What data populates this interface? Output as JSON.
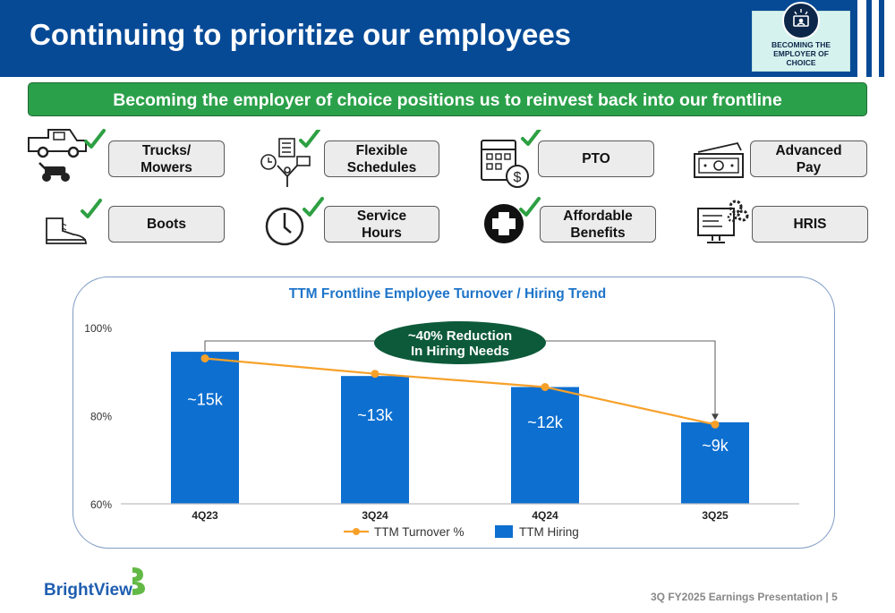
{
  "header": {
    "title": "Continuing to prioritize our employees"
  },
  "badge": {
    "text": "BECOMING THE\nEMPLOYER OF\nCHOICE"
  },
  "banner": {
    "text": "Becoming the employer of choice positions us to reinvest back into our frontline"
  },
  "benefits": [
    {
      "label": "Trucks/\nMowers",
      "icon": "truck-mower-icon",
      "checked": true
    },
    {
      "label": "Flexible\nSchedules",
      "icon": "flexible-schedule-icon",
      "checked": true
    },
    {
      "label": "PTO",
      "icon": "calendar-dollar-icon",
      "checked": true
    },
    {
      "label": "Advanced\nPay",
      "icon": "cash-icon",
      "checked": false
    },
    {
      "label": "Boots",
      "icon": "boot-icon",
      "checked": true
    },
    {
      "label": "Service\nHours",
      "icon": "clock-icon",
      "checked": true
    },
    {
      "label": "Affordable\nBenefits",
      "icon": "medical-cross-icon",
      "checked": true
    },
    {
      "label": "HRIS",
      "icon": "computer-gears-icon",
      "checked": false
    }
  ],
  "chart_data": {
    "type": "bar",
    "title": "TTM Frontline Employee Turnover / Hiring Trend",
    "categories": [
      "4Q23",
      "3Q24",
      "4Q24",
      "3Q25"
    ],
    "y_ticks": [
      "100%",
      "80%",
      "60%"
    ],
    "ylim": [
      60,
      100
    ],
    "grid": false,
    "legend_position": "bottom",
    "series": [
      {
        "name": "TTM Hiring",
        "type": "bar",
        "color": "#0d6fd0",
        "values": [
          94.5,
          89,
          86.5,
          78.5
        ],
        "labels": [
          "~15k",
          "~13k",
          "~12k",
          "~9k"
        ]
      },
      {
        "name": "TTM Turnover %",
        "type": "line",
        "color": "#f7a12a",
        "values": [
          93,
          89.5,
          86.5,
          78
        ]
      }
    ],
    "annotation": {
      "text": "~40% Reduction\nIn Hiring Needs",
      "color": "#0d5a3a"
    }
  },
  "logo": {
    "text": "BrightView"
  },
  "footer": {
    "text": "3Q FY2025 Earnings Presentation | 5"
  },
  "colors": {
    "header": "#064a96",
    "banner": "#2ba04a",
    "check": "#2ea043",
    "bar": "#0d6fd0",
    "line": "#f7a12a"
  }
}
